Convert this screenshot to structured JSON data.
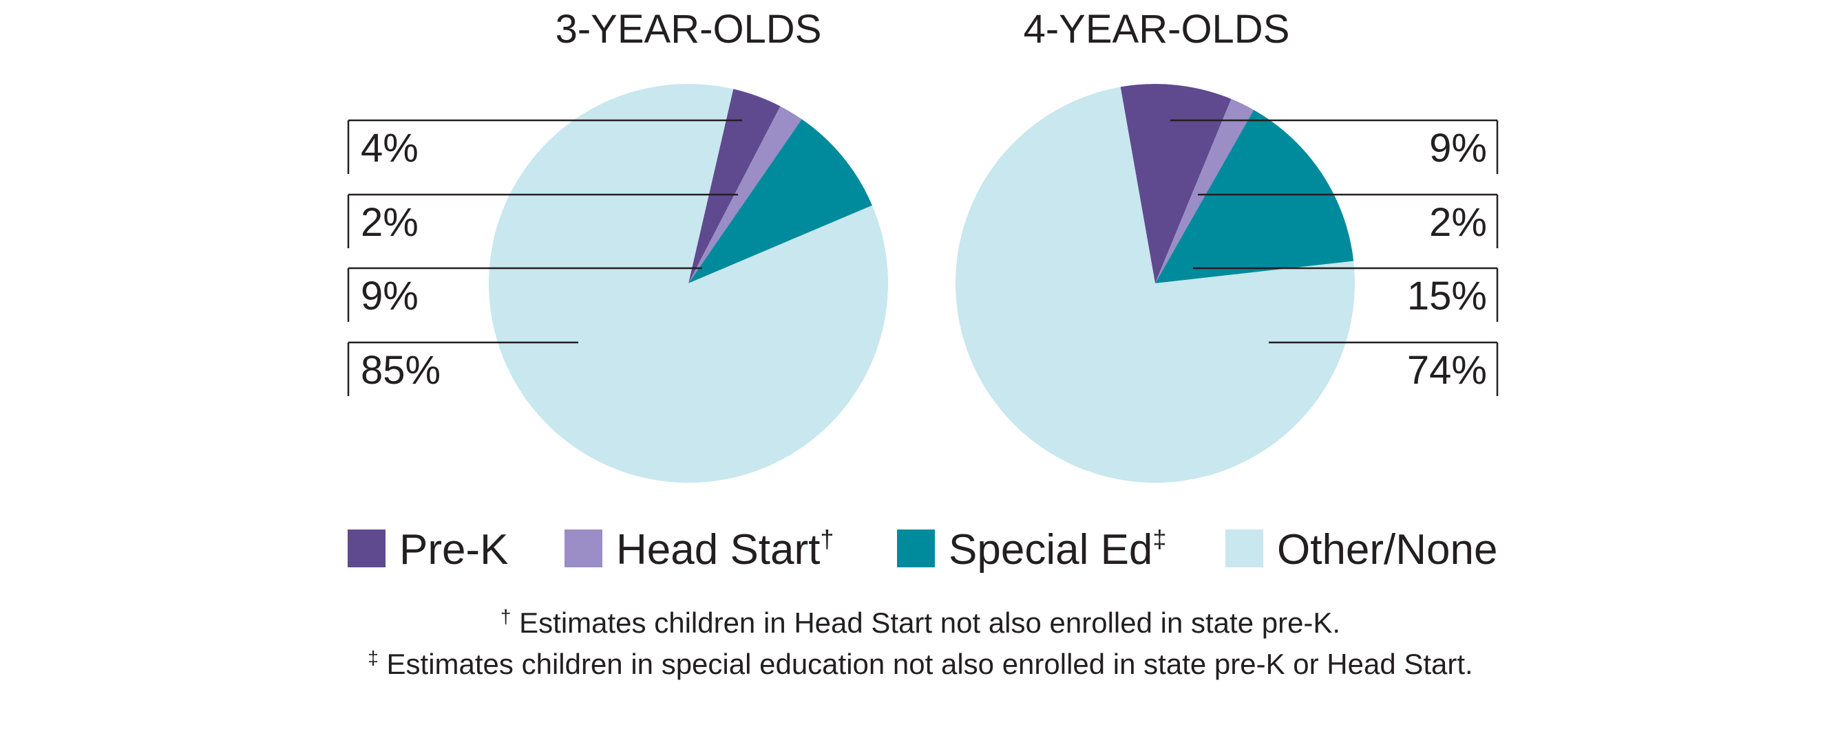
{
  "chart_data": [
    {
      "type": "pie",
      "title": "3-YEAR-OLDS",
      "slices": [
        {
          "label": "Pre-K",
          "value": 4,
          "value_label": "4%"
        },
        {
          "label": "Head Start",
          "value": 2,
          "value_label": "2%"
        },
        {
          "label": "Special Ed",
          "value": 9,
          "value_label": "9%"
        },
        {
          "label": "Other/None",
          "value": 85,
          "value_label": "85%"
        }
      ],
      "label_side": "left"
    },
    {
      "type": "pie",
      "title": "4-YEAR-OLDS",
      "slices": [
        {
          "label": "Pre-K",
          "value": 9,
          "value_label": "9%"
        },
        {
          "label": "Head Start",
          "value": 2,
          "value_label": "2%"
        },
        {
          "label": "Special Ed",
          "value": 15,
          "value_label": "15%"
        },
        {
          "label": "Other/None",
          "value": 74,
          "value_label": "74%"
        }
      ],
      "label_side": "right"
    }
  ],
  "legend": {
    "placement": "bottom",
    "items": [
      {
        "label": "Pre-K",
        "mark": "",
        "color": "#5f4a8f"
      },
      {
        "label": "Head Start",
        "mark": "†",
        "color": "#9b8dc6"
      },
      {
        "label": "Special Ed",
        "mark": "‡",
        "color": "#008b9c"
      },
      {
        "label": "Other/None",
        "mark": "",
        "color": "#c8e7ee"
      }
    ]
  },
  "footnotes": [
    {
      "mark": "†",
      "text": " Estimates children in Head Start not also enrolled in state pre-K."
    },
    {
      "mark": "‡",
      "text": " Estimates children in special education not also enrolled in state pre-K or Head Start."
    }
  ]
}
